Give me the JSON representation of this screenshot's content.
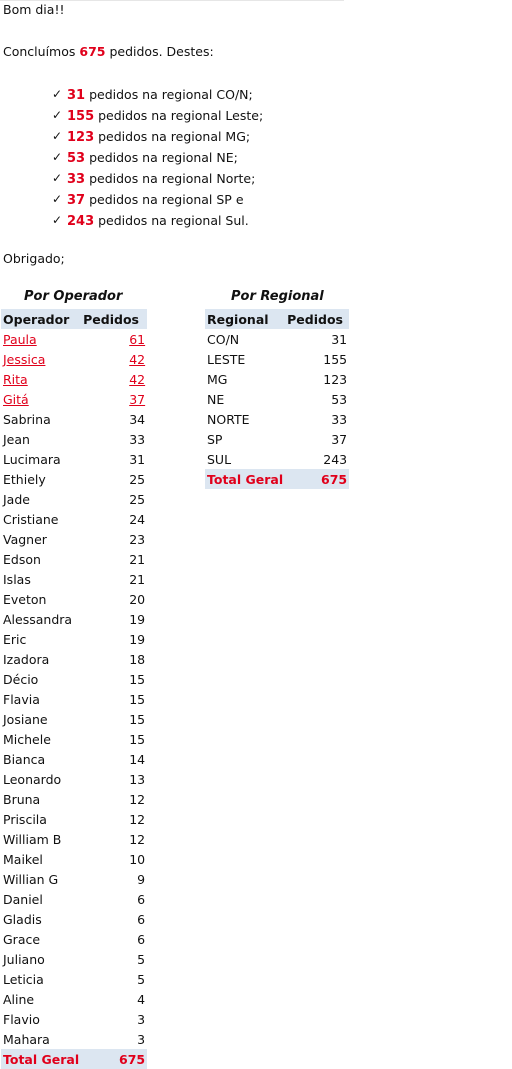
{
  "greeting": "Bom dia!!",
  "intro": {
    "prefix": "Concluímos",
    "total": "675",
    "suffix": "pedidos. Destes:"
  },
  "summary_items": [
    {
      "check": "✓",
      "num": "31",
      "text": "pedidos na regional CO/N;"
    },
    {
      "check": "✓",
      "num": "155",
      "text": "pedidos na regional Leste;"
    },
    {
      "check": "✓",
      "num": "123",
      "text": "pedidos na regional MG;"
    },
    {
      "check": "✓",
      "num": "53",
      "text": "pedidos na regional NE;"
    },
    {
      "check": "✓",
      "num": "33",
      "text": "pedidos na regional Norte;"
    },
    {
      "check": "✓",
      "num": "37",
      "text": "pedidos na regional SP e"
    },
    {
      "check": "✓",
      "num": "243",
      "text": "pedidos na regional Sul."
    }
  ],
  "closing": "Obrigado;",
  "operator_table": {
    "title": "Por Operador",
    "header": {
      "col1": "Operador",
      "col2": "Pedidos"
    },
    "rows": [
      {
        "name": "Paula",
        "count": "61",
        "highlight": true
      },
      {
        "name": "Jessica",
        "count": "42",
        "highlight": true
      },
      {
        "name": "Rita",
        "count": "42",
        "highlight": true
      },
      {
        "name": "Gitá",
        "count": "37",
        "highlight": true
      },
      {
        "name": "Sabrina",
        "count": "34"
      },
      {
        "name": "Jean",
        "count": "33"
      },
      {
        "name": "Lucimara",
        "count": "31"
      },
      {
        "name": "Ethiely",
        "count": "25"
      },
      {
        "name": "Jade",
        "count": "25"
      },
      {
        "name": "Cristiane",
        "count": "24"
      },
      {
        "name": "Vagner",
        "count": "23"
      },
      {
        "name": "Edson",
        "count": "21"
      },
      {
        "name": "Islas",
        "count": "21"
      },
      {
        "name": "Eveton",
        "count": "20"
      },
      {
        "name": "Alessandra",
        "count": "19"
      },
      {
        "name": "Eric",
        "count": "19"
      },
      {
        "name": "Izadora",
        "count": "18"
      },
      {
        "name": "Décio",
        "count": "15"
      },
      {
        "name": "Flavia",
        "count": "15"
      },
      {
        "name": "Josiane",
        "count": "15"
      },
      {
        "name": "Michele",
        "count": "15"
      },
      {
        "name": "Bianca",
        "count": "14"
      },
      {
        "name": "Leonardo",
        "count": "13"
      },
      {
        "name": "Bruna",
        "count": "12"
      },
      {
        "name": "Priscila",
        "count": "12"
      },
      {
        "name": "William B",
        "count": "12"
      },
      {
        "name": "Maikel",
        "count": "10"
      },
      {
        "name": "Willian G",
        "count": "9"
      },
      {
        "name": "Daniel",
        "count": "6"
      },
      {
        "name": "Gladis",
        "count": "6"
      },
      {
        "name": "Grace",
        "count": "6"
      },
      {
        "name": "Juliano",
        "count": "5"
      },
      {
        "name": "Leticia",
        "count": "5"
      },
      {
        "name": "Aline",
        "count": "4"
      },
      {
        "name": "Flavio",
        "count": "3"
      },
      {
        "name": "Mahara",
        "count": "3"
      }
    ],
    "total": {
      "label": "Total Geral",
      "count": "675"
    }
  },
  "regional_table": {
    "title": "Por Regional",
    "header": {
      "col1": "Regional",
      "col2": "Pedidos"
    },
    "rows": [
      {
        "name": "CO/N",
        "count": "31"
      },
      {
        "name": "LESTE",
        "count": "155"
      },
      {
        "name": "MG",
        "count": "123"
      },
      {
        "name": "NE",
        "count": "53"
      },
      {
        "name": "NORTE",
        "count": "33"
      },
      {
        "name": "SP",
        "count": "37"
      },
      {
        "name": "SUL",
        "count": "243"
      }
    ],
    "total": {
      "label": "Total Geral",
      "count": "675"
    }
  },
  "colors": {
    "accent_red": "#e0001b",
    "header_bg": "#dce6f1"
  }
}
